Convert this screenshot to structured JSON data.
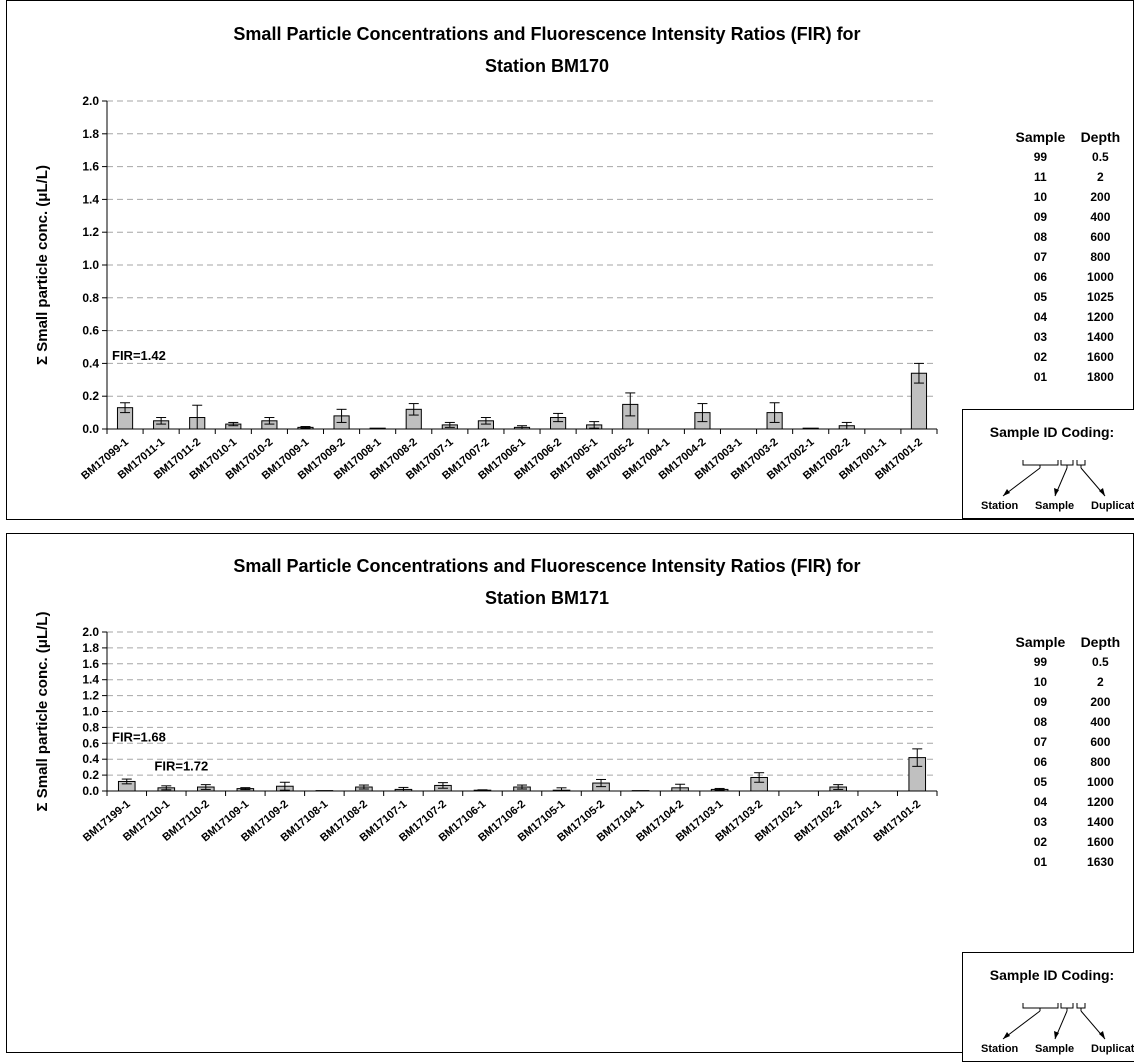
{
  "charts": [
    {
      "chart_data": {
        "type": "bar",
        "title_line1": "Small Particle Concentrations and Fluorescence Intensity Ratios (FIR) for",
        "title_line2": "Station BM170",
        "ylabel": "Σ Small particle conc. (μL/L)",
        "xlabel": "",
        "ylim": [
          0,
          2.0
        ],
        "yticks": [
          "0.0",
          "0.2",
          "0.4",
          "0.6",
          "0.8",
          "1.0",
          "1.2",
          "1.4",
          "1.6",
          "1.8",
          "2.0"
        ],
        "grid": "horizontal dashed",
        "categories": [
          "BM17099-1",
          "BM17011-1",
          "BM17011-2",
          "BM17010-1",
          "BM17010-2",
          "BM17009-1",
          "BM17009-2",
          "BM17008-1",
          "BM17008-2",
          "BM17007-1",
          "BM17007-2",
          "BM17006-1",
          "BM17006-2",
          "BM17005-1",
          "BM17005-2",
          "BM17004-1",
          "BM17004-2",
          "BM17003-1",
          "BM17003-2",
          "BM17002-1",
          "BM17002-2",
          "BM17001-1",
          "BM17001-2"
        ],
        "values": [
          0.13,
          0.05,
          0.07,
          0.03,
          0.05,
          0.01,
          0.08,
          0.005,
          0.12,
          0.025,
          0.05,
          0.01,
          0.07,
          0.025,
          0.15,
          0.0,
          0.1,
          0.0,
          0.1,
          0.005,
          0.02,
          0.0,
          0.34
        ],
        "errors": [
          0.03,
          0.02,
          0.075,
          0.01,
          0.02,
          0.005,
          0.04,
          0.0,
          0.035,
          0.015,
          0.02,
          0.01,
          0.025,
          0.02,
          0.07,
          0.0,
          0.055,
          0.0,
          0.06,
          0.0,
          0.02,
          0.0,
          0.06
        ],
        "bar_color": "#c0c0c0",
        "annotations": [
          {
            "text": "FIR=1.42",
            "y": 0.42,
            "x_index": 0
          }
        ]
      },
      "legend": {
        "headers": [
          "Sample",
          "Depth"
        ],
        "rows": [
          [
            "99",
            "0.5"
          ],
          [
            "11",
            "2"
          ],
          [
            "10",
            "200"
          ],
          [
            "09",
            "400"
          ],
          [
            "08",
            "600"
          ],
          [
            "07",
            "800"
          ],
          [
            "06",
            "1000"
          ],
          [
            "05",
            "1025"
          ],
          [
            "04",
            "1200"
          ],
          [
            "03",
            "1400"
          ],
          [
            "02",
            "1600"
          ],
          [
            "01",
            "1800"
          ]
        ]
      },
      "id_coding": {
        "title": "Sample ID Coding:",
        "labels": [
          "Station",
          "Sample",
          "Duplicate"
        ]
      }
    },
    {
      "chart_data": {
        "type": "bar",
        "title_line1": "Small Particle Concentrations and Fluorescence Intensity Ratios (FIR) for",
        "title_line2": "Station BM171",
        "ylabel": "Σ Small particle conc. (μL/L)",
        "xlabel": "",
        "ylim": [
          0,
          2.0
        ],
        "yticks": [
          "0.0",
          "0.2",
          "0.4",
          "0.6",
          "0.8",
          "1.0",
          "1.2",
          "1.4",
          "1.6",
          "1.8",
          "2.0"
        ],
        "grid": "horizontal dashed",
        "categories": [
          "BM17199-1",
          "BM17110-1",
          "BM17110-2",
          "BM17109-1",
          "BM17109-2",
          "BM17108-1",
          "BM17108-2",
          "BM17107-1",
          "BM17107-2",
          "BM17106-1",
          "BM17106-2",
          "BM17105-1",
          "BM17105-2",
          "BM17104-1",
          "BM17104-2",
          "BM17103-1",
          "BM17103-2",
          "BM17102-1",
          "BM17102-2",
          "BM17101-1",
          "BM17101-2"
        ],
        "values": [
          0.12,
          0.04,
          0.05,
          0.03,
          0.06,
          0.005,
          0.05,
          0.02,
          0.07,
          0.01,
          0.05,
          0.01,
          0.1,
          0.005,
          0.04,
          0.02,
          0.17,
          0.0,
          0.05,
          0.0,
          0.42
        ],
        "errors": [
          0.03,
          0.025,
          0.03,
          0.012,
          0.05,
          0.0,
          0.025,
          0.025,
          0.035,
          0.005,
          0.025,
          0.03,
          0.045,
          0.0,
          0.045,
          0.012,
          0.06,
          0.0,
          0.03,
          0.0,
          0.11
        ],
        "bar_color": "#c0c0c0",
        "annotations": [
          {
            "text": "FIR=1.68",
            "y": 0.62,
            "x_index": 0
          },
          {
            "text": "FIR=1.72",
            "y": 0.26,
            "x_index": 1
          }
        ]
      },
      "legend": {
        "headers": [
          "Sample",
          "Depth"
        ],
        "rows": [
          [
            "99",
            "0.5"
          ],
          [
            "10",
            "2"
          ],
          [
            "09",
            "200"
          ],
          [
            "08",
            "400"
          ],
          [
            "07",
            "600"
          ],
          [
            "06",
            "800"
          ],
          [
            "05",
            "1000"
          ],
          [
            "04",
            "1200"
          ],
          [
            "03",
            "1400"
          ],
          [
            "02",
            "1600"
          ],
          [
            "01",
            "1630"
          ]
        ]
      },
      "id_coding": {
        "title": "Sample ID Coding:",
        "labels": [
          "Station",
          "Sample",
          "Duplicate"
        ]
      }
    }
  ]
}
